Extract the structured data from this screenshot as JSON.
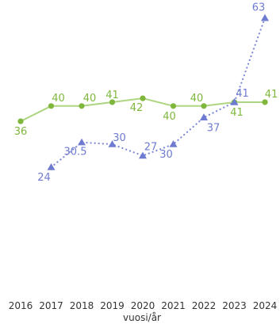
{
  "chart_data": {
    "type": "line",
    "xlabel": "vuosi/år",
    "categories": [
      "2016",
      "2017",
      "2018",
      "2019",
      "2020",
      "2021",
      "2022",
      "2023",
      "2024"
    ],
    "ylim": [
      0,
      70
    ],
    "grid": false,
    "series": [
      {
        "color": "#7FB73D",
        "line_color": "#AED581",
        "marker": "circle",
        "line_style": "solid",
        "values": [
          36,
          40,
          40,
          41,
          42,
          40,
          40,
          41,
          41
        ],
        "labels": [
          "36",
          "40",
          "40",
          "41",
          "42",
          "40",
          "40",
          "41",
          "41"
        ]
      },
      {
        "color": "#6F7BD0",
        "line_color": "#7E8AD6",
        "marker": "triangle",
        "line_style": "dotted",
        "values": [
          null,
          24,
          30.5,
          30,
          27,
          30,
          37,
          41,
          63
        ],
        "labels": [
          "",
          "24",
          "30.5",
          "30",
          "27",
          "30",
          "37",
          "41",
          "63"
        ]
      }
    ]
  }
}
